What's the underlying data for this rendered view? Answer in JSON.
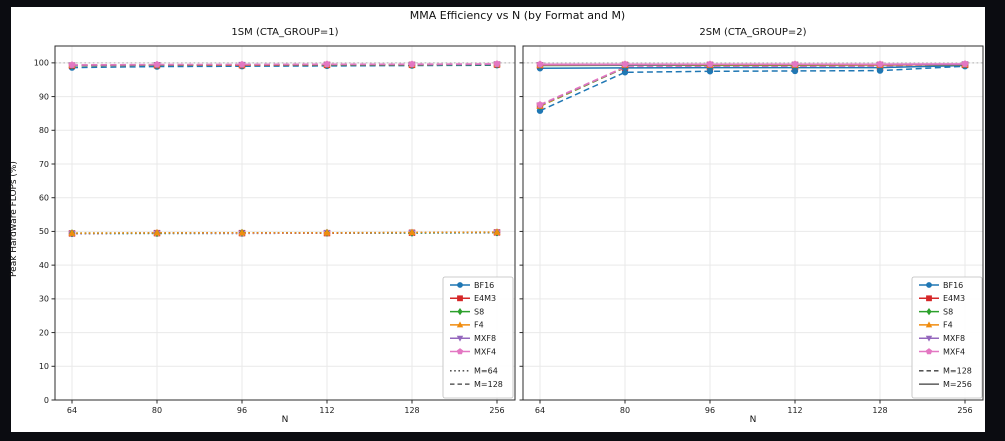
{
  "window": {
    "background": "#0b0c11",
    "figure_background": "#ffffff"
  },
  "figure": {
    "title": "MMA Efficiency vs N (by Format and M)"
  },
  "chart_data": [
    {
      "type": "line",
      "title": "1SM (CTA_GROUP=1)",
      "xlabel": "N",
      "ylabel": "Peak Hardware FLOPs (%)",
      "categories": [
        "64",
        "80",
        "96",
        "112",
        "128",
        "256"
      ],
      "ylim": [
        0,
        105
      ],
      "yticks": [
        0,
        10,
        20,
        30,
        40,
        50,
        60,
        70,
        80,
        90,
        100
      ],
      "grid": true,
      "reference_line": {
        "y": 100,
        "style": "dotted",
        "color": "#b0b0b0"
      },
      "legend": {
        "position": "lower right",
        "formats": [
          {
            "label": "BF16",
            "color": "#1f77b4",
            "marker": "circle"
          },
          {
            "label": "E4M3",
            "color": "#d62728",
            "marker": "square"
          },
          {
            "label": "S8",
            "color": "#2ca02c",
            "marker": "diamond"
          },
          {
            "label": "F4",
            "color": "#f08c0e",
            "marker": "triangle-up"
          },
          {
            "label": "MXF8",
            "color": "#9467bd",
            "marker": "triangle-down"
          },
          {
            "label": "MXF4",
            "color": "#e377c2",
            "marker": "pentagon"
          }
        ],
        "styles": [
          {
            "label": "M=64",
            "linestyle": "dotted"
          },
          {
            "label": "M=128",
            "linestyle": "dashed"
          }
        ]
      },
      "series": [
        {
          "format": "BF16",
          "M": 64,
          "linestyle": "dotted",
          "values": [
            49.3,
            49.4,
            49.4,
            49.5,
            49.5,
            49.6
          ]
        },
        {
          "format": "E4M3",
          "M": 64,
          "linestyle": "dotted",
          "values": [
            49.4,
            49.5,
            49.5,
            49.5,
            49.6,
            49.7
          ]
        },
        {
          "format": "MXF8",
          "M": 64,
          "linestyle": "dotted",
          "values": [
            49.4,
            49.5,
            49.5,
            49.6,
            49.6,
            49.7
          ]
        },
        {
          "format": "MXF4",
          "M": 64,
          "linestyle": "dotted",
          "values": [
            49.4,
            49.5,
            49.5,
            49.6,
            49.6,
            49.7
          ]
        },
        {
          "format": "S8",
          "M": 64,
          "linestyle": "dotted",
          "values": [
            49.5,
            49.5,
            49.6,
            49.6,
            49.6,
            49.7
          ]
        },
        {
          "format": "F4",
          "M": 64,
          "linestyle": "dotted",
          "values": [
            49.5,
            49.6,
            49.6,
            49.6,
            49.7,
            49.8
          ]
        },
        {
          "format": "BF16",
          "M": 128,
          "linestyle": "dashed",
          "values": [
            98.6,
            98.9,
            99.0,
            99.1,
            99.2,
            99.3
          ]
        },
        {
          "format": "E4M3",
          "M": 128,
          "linestyle": "dashed",
          "values": [
            99.2,
            99.3,
            99.3,
            99.4,
            99.4,
            99.5
          ]
        },
        {
          "format": "S8",
          "M": 128,
          "linestyle": "dashed",
          "values": [
            99.2,
            99.3,
            99.4,
            99.4,
            99.4,
            99.5
          ]
        },
        {
          "format": "F4",
          "M": 128,
          "linestyle": "dashed",
          "values": [
            99.3,
            99.4,
            99.4,
            99.5,
            99.5,
            99.6
          ]
        },
        {
          "format": "MXF8",
          "M": 128,
          "linestyle": "dashed",
          "values": [
            99.3,
            99.4,
            99.5,
            99.5,
            99.5,
            99.6
          ]
        },
        {
          "format": "MXF4",
          "M": 128,
          "linestyle": "dashed",
          "values": [
            99.4,
            99.5,
            99.5,
            99.6,
            99.6,
            99.7
          ]
        }
      ]
    },
    {
      "type": "line",
      "title": "2SM (CTA_GROUP=2)",
      "xlabel": "N",
      "ylabel": "Peak Hardware FLOPs (%)",
      "categories": [
        "64",
        "80",
        "96",
        "112",
        "128",
        "256"
      ],
      "ylim": [
        0,
        105
      ],
      "yticks": [
        0,
        10,
        20,
        30,
        40,
        50,
        60,
        70,
        80,
        90,
        100
      ],
      "grid": true,
      "reference_line": {
        "y": 100,
        "style": "dotted",
        "color": "#b0b0b0"
      },
      "legend": {
        "position": "lower right",
        "formats": [
          {
            "label": "BF16",
            "color": "#1f77b4",
            "marker": "circle"
          },
          {
            "label": "E4M3",
            "color": "#d62728",
            "marker": "square"
          },
          {
            "label": "S8",
            "color": "#2ca02c",
            "marker": "diamond"
          },
          {
            "label": "F4",
            "color": "#f08c0e",
            "marker": "triangle-up"
          },
          {
            "label": "MXF8",
            "color": "#9467bd",
            "marker": "triangle-down"
          },
          {
            "label": "MXF4",
            "color": "#e377c2",
            "marker": "pentagon"
          }
        ],
        "styles": [
          {
            "label": "M=128",
            "linestyle": "dashed"
          },
          {
            "label": "M=256",
            "linestyle": "solid"
          }
        ]
      },
      "series": [
        {
          "format": "BF16",
          "M": 128,
          "linestyle": "dashed",
          "values": [
            85.8,
            97.2,
            97.5,
            97.6,
            97.7,
            99.0
          ]
        },
        {
          "format": "E4M3",
          "M": 128,
          "linestyle": "dashed",
          "values": [
            87.3,
            98.6,
            98.8,
            98.8,
            98.9,
            99.4
          ]
        },
        {
          "format": "S8",
          "M": 128,
          "linestyle": "dashed",
          "values": [
            87.1,
            98.6,
            98.7,
            98.8,
            98.8,
            99.3
          ]
        },
        {
          "format": "F4",
          "M": 128,
          "linestyle": "dashed",
          "values": [
            87.2,
            98.7,
            98.8,
            98.8,
            98.9,
            99.4
          ]
        },
        {
          "format": "MXF8",
          "M": 128,
          "linestyle": "dashed",
          "values": [
            87.4,
            98.7,
            98.8,
            98.9,
            98.9,
            99.4
          ]
        },
        {
          "format": "MXF4",
          "M": 128,
          "linestyle": "dashed",
          "values": [
            87.6,
            98.8,
            98.9,
            98.9,
            99.0,
            99.5
          ]
        },
        {
          "format": "BF16",
          "M": 256,
          "linestyle": "solid",
          "values": [
            98.4,
            98.5,
            98.6,
            98.6,
            98.6,
            99.2
          ]
        },
        {
          "format": "E4M3",
          "M": 256,
          "linestyle": "solid",
          "values": [
            99.3,
            99.4,
            99.4,
            99.4,
            99.4,
            99.5
          ]
        },
        {
          "format": "S8",
          "M": 256,
          "linestyle": "solid",
          "values": [
            99.2,
            99.3,
            99.3,
            99.3,
            99.4,
            99.5
          ]
        },
        {
          "format": "F4",
          "M": 256,
          "linestyle": "solid",
          "values": [
            99.3,
            99.4,
            99.4,
            99.4,
            99.4,
            99.5
          ]
        },
        {
          "format": "MXF8",
          "M": 256,
          "linestyle": "solid",
          "values": [
            99.4,
            99.4,
            99.5,
            99.5,
            99.5,
            99.6
          ]
        },
        {
          "format": "MXF4",
          "M": 256,
          "linestyle": "solid",
          "values": [
            99.6,
            99.6,
            99.6,
            99.6,
            99.6,
            99.7
          ]
        }
      ]
    }
  ]
}
